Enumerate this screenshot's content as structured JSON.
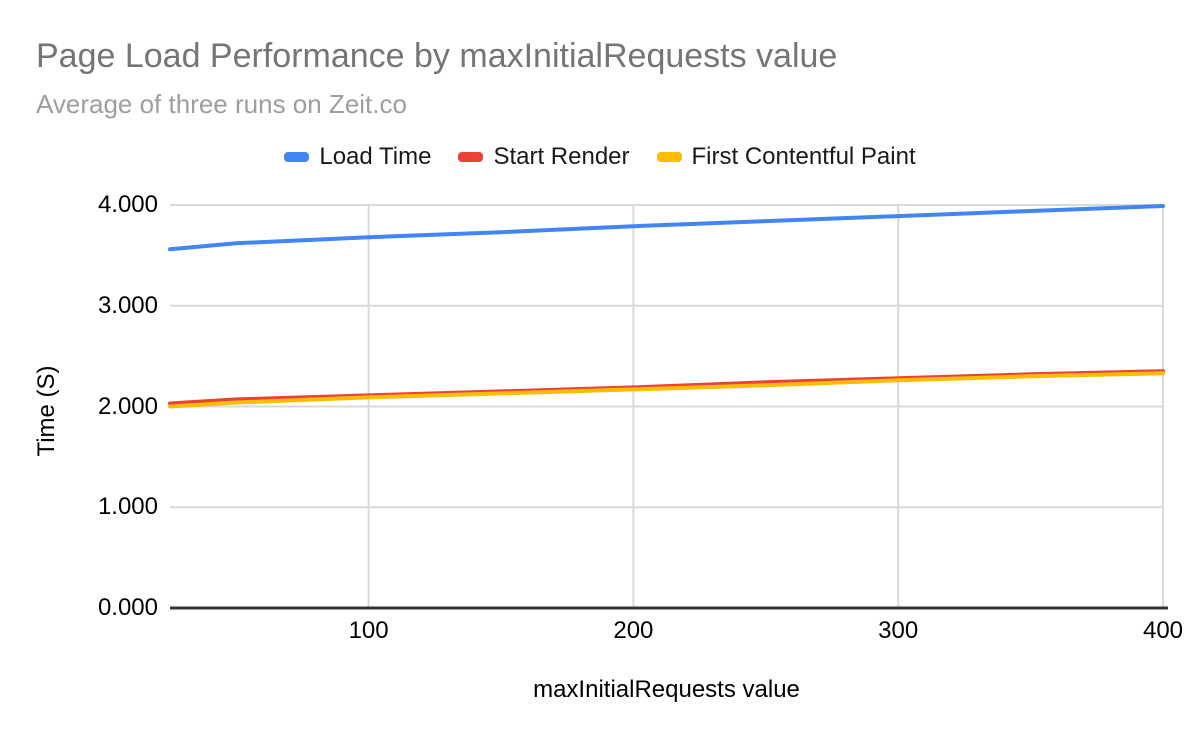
{
  "header": {
    "title": "Page Load Performance by maxInitialRequests value",
    "subtitle": "Average of three runs on Zeit.co",
    "title_color": "#757575",
    "subtitle_color": "#9e9e9e"
  },
  "legend": {
    "position": "top",
    "items": [
      {
        "label": "Load Time",
        "color": "#4285f4"
      },
      {
        "label": "Start Render",
        "color": "#ea4335"
      },
      {
        "label": "First Contentful Paint",
        "color": "#fbbc04"
      }
    ]
  },
  "chart_data": {
    "type": "line",
    "title": "Page Load Performance by maxInitialRequests value",
    "subtitle": "Average of three runs on Zeit.co",
    "xlabel": "maxInitialRequests value",
    "ylabel": "Time (S)",
    "x": [
      25,
      50,
      100,
      150,
      200,
      250,
      300,
      350,
      400
    ],
    "series": [
      {
        "name": "Load Time",
        "color": "#4285f4",
        "values": [
          3.56,
          3.62,
          3.68,
          3.73,
          3.79,
          3.84,
          3.89,
          3.94,
          3.99
        ]
      },
      {
        "name": "Start Render",
        "color": "#ea4335",
        "values": [
          2.03,
          2.07,
          2.11,
          2.15,
          2.19,
          2.24,
          2.28,
          2.32,
          2.35
        ]
      },
      {
        "name": "First Contentful Paint",
        "color": "#fbbc04",
        "values": [
          2.0,
          2.04,
          2.09,
          2.13,
          2.17,
          2.21,
          2.26,
          2.3,
          2.33
        ]
      }
    ],
    "xlim": [
      25,
      400
    ],
    "ylim": [
      0,
      4
    ],
    "x_ticks": [
      100,
      200,
      300,
      400
    ],
    "y_ticks": [
      0,
      1,
      2,
      3,
      4
    ],
    "y_tick_decimals": 3,
    "grid": true,
    "legend_position": "top",
    "gridline_color": "#d9d9d9",
    "baseline_color": "#333333",
    "tick_text_color": "#000000",
    "line_width": 4
  }
}
